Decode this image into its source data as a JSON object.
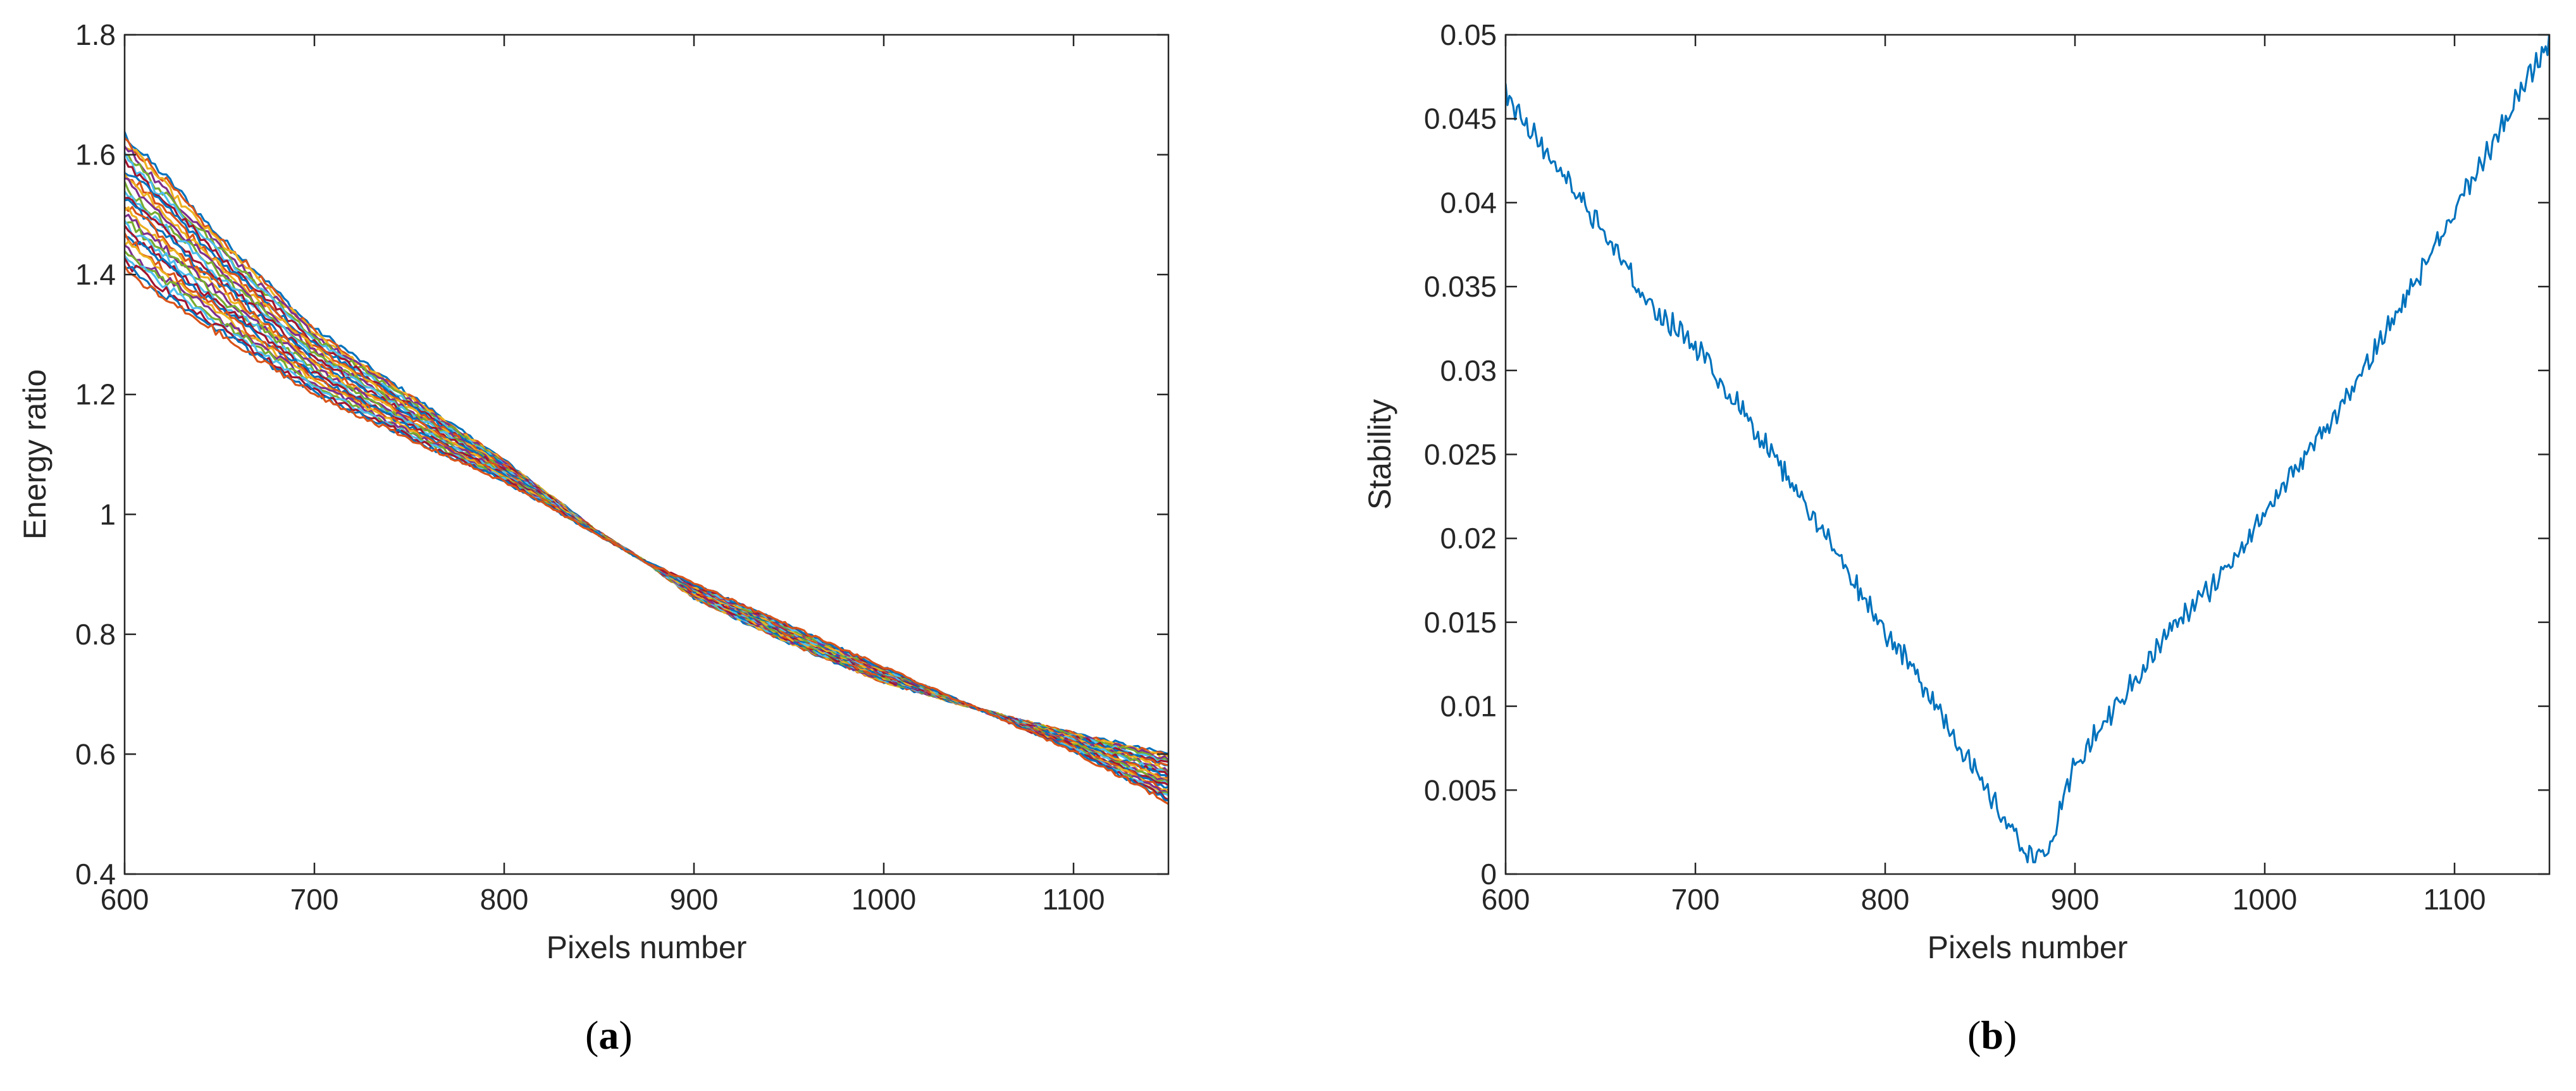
{
  "chart_data": [
    {
      "type": "line",
      "panel_label": "a",
      "xlabel": "Pixels number",
      "ylabel": "Energy ratio",
      "xlim": [
        600,
        1150
      ],
      "ylim": [
        0.4,
        1.8
      ],
      "xticks": [
        600,
        700,
        800,
        900,
        1000,
        1100
      ],
      "xtick_labels": [
        "600",
        "700",
        "800",
        "900",
        "1000",
        "1100"
      ],
      "yticks": [
        0.4,
        0.6,
        0.8,
        1.0,
        1.2,
        1.4,
        1.6,
        1.8
      ],
      "ytick_labels": [
        "0.4",
        "0.6",
        "0.8",
        "1",
        "1.2",
        "1.4",
        "1.6",
        "1.8"
      ],
      "grid": false,
      "legend": "none",
      "curve_family": {
        "count": 30,
        "x_points": [
          600,
          650,
          700,
          750,
          800,
          850,
          875,
          900,
          950,
          1000,
          1050,
          1100,
          1150
        ],
        "upper_envelope": [
          1.635,
          1.465,
          1.31,
          1.2,
          1.09,
          0.97,
          0.92,
          0.86,
          0.785,
          0.72,
          0.675,
          0.635,
          0.6
        ],
        "lower_envelope": [
          1.405,
          1.3,
          1.2,
          1.125,
          1.055,
          0.965,
          0.92,
          0.885,
          0.815,
          0.745,
          0.675,
          0.605,
          0.52
        ],
        "colors": [
          "#0072BD",
          "#D95319",
          "#EDB120",
          "#7E2F8E",
          "#77AC30",
          "#4DBEEE",
          "#A2142F"
        ]
      }
    },
    {
      "type": "line",
      "panel_label": "b",
      "xlabel": "Pixels number",
      "ylabel": "Stability",
      "xlim": [
        600,
        1150
      ],
      "ylim": [
        0,
        0.05
      ],
      "xticks": [
        600,
        700,
        800,
        900,
        1000,
        1100
      ],
      "xtick_labels": [
        "600",
        "700",
        "800",
        "900",
        "1000",
        "1100"
      ],
      "yticks": [
        0,
        0.005,
        0.01,
        0.015,
        0.02,
        0.025,
        0.03,
        0.035,
        0.04,
        0.045,
        0.05
      ],
      "ytick_labels": [
        "0",
        "0.005",
        "0.01",
        "0.015",
        "0.02",
        "0.025",
        "0.03",
        "0.035",
        "0.04",
        "0.045",
        "0.05"
      ],
      "grid": false,
      "legend": "none",
      "series": [
        {
          "color": "#0072BD",
          "x": [
            600,
            625,
            650,
            675,
            700,
            725,
            750,
            775,
            800,
            825,
            850,
            875,
            885,
            900,
            925,
            950,
            975,
            1000,
            1025,
            1050,
            1075,
            1100,
            1125,
            1150
          ],
          "y": [
            0.0465,
            0.0425,
            0.0385,
            0.034,
            0.0315,
            0.0275,
            0.0235,
            0.019,
            0.0145,
            0.0105,
            0.0055,
            0.0012,
            0.001,
            0.0065,
            0.0105,
            0.0145,
            0.0175,
            0.0215,
            0.0255,
            0.0295,
            0.0345,
            0.0395,
            0.0445,
            0.0497
          ]
        }
      ]
    }
  ]
}
